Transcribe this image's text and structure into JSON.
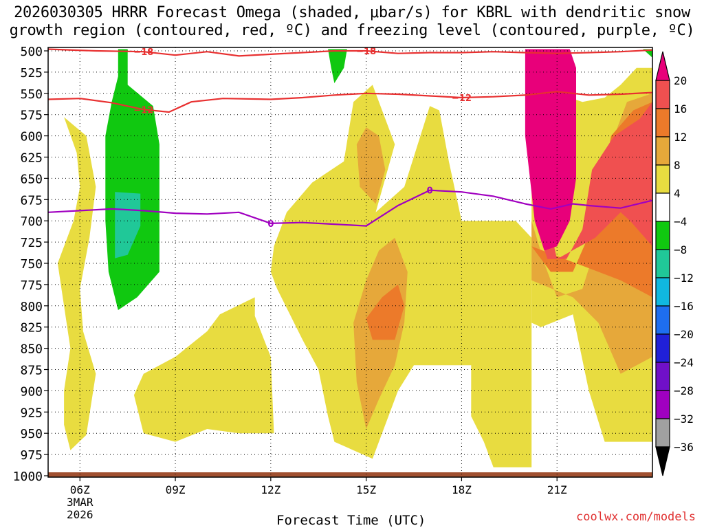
{
  "title": {
    "line1": "2026030305 HRRR Forecast Omega (shaded, μbar/s) for KBRL with dendritic snow",
    "line2": "growth region (contoured, red, ºC) and freezing level (contoured, purple, ºC)"
  },
  "watermark": "coolwx.com/models",
  "chart_data": {
    "type": "contour",
    "title": "2026030305 HRRR Forecast Omega (shaded, μbar/s) for KBRL with dendritic snow growth region (contoured, red, ºC) and freezing level (contoured, purple, ºC)",
    "xlabel": "Forecast Time (UTC)",
    "ylabel": "",
    "x_hours_range": [
      5.0,
      24.0
    ],
    "x_ticks": [
      {
        "hour": 6,
        "label": "06Z",
        "sublabel": "3MAR",
        "sublabel2": "2026"
      },
      {
        "hour": 9,
        "label": "09Z"
      },
      {
        "hour": 12,
        "label": "12Z"
      },
      {
        "hour": 15,
        "label": "15Z"
      },
      {
        "hour": 18,
        "label": "18Z"
      },
      {
        "hour": 21,
        "label": "21Z"
      }
    ],
    "y_levels": [
      500,
      525,
      550,
      575,
      600,
      625,
      650,
      675,
      700,
      725,
      750,
      775,
      800,
      825,
      850,
      875,
      900,
      925,
      950,
      975,
      1000
    ],
    "y_range": [
      500,
      1000
    ],
    "colorbar": {
      "ticks": [
        "20",
        "16",
        "12",
        "8",
        "4",
        "−4",
        "−8",
        "−12",
        "−16",
        "−20",
        "−24",
        "−28",
        "−32",
        "−36"
      ],
      "bins": [
        {
          "color": "#e8007a"
        },
        {
          "color": "#f05050"
        },
        {
          "color": "#ec7a2a"
        },
        {
          "color": "#e6a83a"
        },
        {
          "color": "#e8dc40"
        },
        {
          "color": "#ffffff"
        },
        {
          "color": "#10c810"
        },
        {
          "color": "#20c898"
        },
        {
          "color": "#10b8e0"
        },
        {
          "color": "#1e6ef0"
        },
        {
          "color": "#2020d8"
        },
        {
          "color": "#7010c8"
        },
        {
          "color": "#a000c0"
        },
        {
          "color": "#a0a0a0"
        },
        {
          "color": "#000000"
        }
      ]
    },
    "contours": [
      {
        "name": "-18",
        "label": "−18",
        "color": "#e83030",
        "points": [
          [
            5.0,
            498
          ],
          [
            6.5,
            500
          ],
          [
            8,
            501
          ],
          [
            9,
            505
          ],
          [
            10,
            501
          ],
          [
            11,
            506
          ],
          [
            12,
            504
          ],
          [
            13,
            502
          ],
          [
            14,
            500
          ],
          [
            15,
            500
          ],
          [
            16,
            503
          ],
          [
            17,
            502
          ],
          [
            18,
            502
          ],
          [
            19,
            501
          ],
          [
            20,
            502
          ],
          [
            21,
            503
          ],
          [
            22,
            502
          ],
          [
            23,
            501
          ],
          [
            24,
            499
          ]
        ]
      },
      {
        "name": "-12",
        "label": "−12",
        "color": "#e83030",
        "points": [
          [
            5.0,
            557
          ],
          [
            6,
            556
          ],
          [
            7,
            561
          ],
          [
            8,
            569
          ],
          [
            8.8,
            572
          ],
          [
            9.5,
            560
          ],
          [
            10.5,
            556
          ],
          [
            12,
            557
          ],
          [
            13,
            555
          ],
          [
            14,
            552
          ],
          [
            15,
            550
          ],
          [
            16,
            551
          ],
          [
            17,
            553
          ],
          [
            18,
            555
          ],
          [
            19,
            554
          ],
          [
            20,
            552
          ],
          [
            21,
            548
          ],
          [
            22,
            552
          ],
          [
            23,
            551
          ],
          [
            24,
            549
          ]
        ]
      },
      {
        "name": "0",
        "label": "0",
        "color": "#a000c0",
        "points": [
          [
            5.0,
            690
          ],
          [
            6,
            688
          ],
          [
            7,
            686
          ],
          [
            8,
            688
          ],
          [
            9,
            691
          ],
          [
            10,
            692
          ],
          [
            11,
            690
          ],
          [
            12,
            703
          ],
          [
            13,
            702
          ],
          [
            14,
            704
          ],
          [
            15,
            706
          ],
          [
            16,
            682
          ],
          [
            17,
            664
          ],
          [
            18,
            666
          ],
          [
            19,
            671
          ],
          [
            20,
            680
          ],
          [
            20.8,
            686
          ],
          [
            21.5,
            680
          ],
          [
            22,
            682
          ],
          [
            23,
            685
          ],
          [
            24,
            676
          ]
        ]
      }
    ],
    "contour_label_positions": [
      {
        "name": "-18",
        "hour": 8.0
      },
      {
        "name": "-18",
        "hour": 15.0
      },
      {
        "name": "-12",
        "hour": 8.0
      },
      {
        "name": "-12",
        "hour": 18.0
      },
      {
        "name": "0",
        "hour": 12.0
      },
      {
        "name": "0",
        "hour": 17.0
      }
    ],
    "shaded_regions": [
      {
        "bin": "4 to 8",
        "color": "#e8dc40",
        "polygon": [
          [
            5.5,
            578
          ],
          [
            5.9,
            620
          ],
          [
            6.0,
            660
          ],
          [
            5.8,
            700
          ],
          [
            5.3,
            750
          ],
          [
            5.5,
            800
          ],
          [
            5.7,
            850
          ],
          [
            5.5,
            900
          ],
          [
            5.5,
            940
          ],
          [
            5.7,
            970
          ],
          [
            6.2,
            952
          ],
          [
            6.5,
            880
          ],
          [
            6.1,
            830
          ],
          [
            6.0,
            780
          ],
          [
            6.3,
            720
          ],
          [
            6.5,
            660
          ],
          [
            6.2,
            600
          ]
        ]
      },
      {
        "bin": "4 to 8",
        "color": "#e8dc40",
        "polygon": [
          [
            7.7,
            905
          ],
          [
            8.0,
            880
          ],
          [
            9.0,
            860
          ],
          [
            10.0,
            830
          ],
          [
            10.4,
            810
          ],
          [
            11.5,
            790
          ],
          [
            11.5,
            812
          ],
          [
            12.0,
            860
          ],
          [
            12.1,
            950
          ],
          [
            11.0,
            950
          ],
          [
            10.0,
            945
          ],
          [
            9.0,
            960
          ],
          [
            8.0,
            950
          ]
        ]
      },
      {
        "bin": "4 to 8",
        "color": "#e8dc40",
        "polygon": [
          [
            12.1,
            730
          ],
          [
            12.5,
            690
          ],
          [
            13.3,
            655
          ],
          [
            14.3,
            630
          ],
          [
            14.6,
            560
          ],
          [
            15.2,
            540
          ],
          [
            15.9,
            610
          ],
          [
            15.3,
            690
          ],
          [
            16.2,
            660
          ],
          [
            17.0,
            565
          ],
          [
            17.3,
            570
          ],
          [
            17.6,
            630
          ],
          [
            18.0,
            700
          ],
          [
            19.7,
            700
          ],
          [
            20.2,
            720
          ],
          [
            20.2,
            990
          ],
          [
            19.0,
            990
          ],
          [
            18.7,
            960
          ],
          [
            18.3,
            930
          ],
          [
            18.3,
            870
          ],
          [
            16.5,
            870
          ],
          [
            16.0,
            900
          ],
          [
            15.2,
            980
          ],
          [
            14.0,
            960
          ],
          [
            13.8,
            930
          ],
          [
            13.5,
            875
          ],
          [
            13.0,
            840
          ],
          [
            12.2,
            780
          ],
          [
            12.0,
            760
          ]
        ]
      },
      {
        "bin": "4 to 8",
        "color": "#e8dc40",
        "polygon": [
          [
            20.2,
            565
          ],
          [
            21.0,
            550
          ],
          [
            21.8,
            560
          ],
          [
            22.5,
            555
          ],
          [
            23.0,
            540
          ],
          [
            23.5,
            520
          ],
          [
            24.0,
            520
          ],
          [
            24.0,
            960
          ],
          [
            22.5,
            960
          ],
          [
            22.0,
            900
          ],
          [
            21.5,
            810
          ],
          [
            20.5,
            825
          ],
          [
            20.2,
            820
          ]
        ]
      },
      {
        "bin": "8 to 12",
        "color": "#e6a83a",
        "polygon": [
          [
            14.7,
            610
          ],
          [
            15.0,
            590
          ],
          [
            15.4,
            600
          ],
          [
            15.6,
            640
          ],
          [
            15.3,
            680
          ],
          [
            14.8,
            660
          ]
        ]
      },
      {
        "bin": "8 to 12",
        "color": "#e6a83a",
        "polygon": [
          [
            14.6,
            820
          ],
          [
            15.0,
            770
          ],
          [
            15.4,
            735
          ],
          [
            15.9,
            720
          ],
          [
            16.3,
            760
          ],
          [
            16.2,
            820
          ],
          [
            15.9,
            870
          ],
          [
            15.4,
            910
          ],
          [
            15.0,
            945
          ],
          [
            14.7,
            890
          ]
        ]
      },
      {
        "bin": "8 to 12",
        "color": "#e6a83a",
        "polygon": [
          [
            20.2,
            700
          ],
          [
            20.6,
            750
          ],
          [
            21.0,
            790
          ],
          [
            21.8,
            780
          ],
          [
            22.3,
            720
          ],
          [
            22.6,
            620
          ],
          [
            23.2,
            560
          ],
          [
            24.0,
            550
          ],
          [
            24.0,
            860
          ],
          [
            23.0,
            880
          ],
          [
            22.3,
            820
          ],
          [
            21.5,
            790
          ],
          [
            20.2,
            770
          ]
        ]
      },
      {
        "bin": "12 to 16",
        "color": "#ec7a2a",
        "polygon": [
          [
            15.0,
            815
          ],
          [
            15.5,
            790
          ],
          [
            16.0,
            775
          ],
          [
            16.2,
            800
          ],
          [
            15.9,
            840
          ],
          [
            15.2,
            840
          ]
        ]
      },
      {
        "bin": "12 to 16",
        "color": "#ec7a2a",
        "polygon": [
          [
            20.2,
            730
          ],
          [
            20.8,
            760
          ],
          [
            21.5,
            760
          ],
          [
            22.2,
            700
          ],
          [
            22.7,
            600
          ],
          [
            23.4,
            570
          ],
          [
            24.0,
            560
          ],
          [
            24.0,
            790
          ],
          [
            23.0,
            770
          ],
          [
            22.3,
            760
          ]
        ]
      },
      {
        "bin": "16 to 20",
        "color": "#f05050",
        "polygon": [
          [
            20.1,
            600
          ],
          [
            20.3,
            700
          ],
          [
            20.7,
            745
          ],
          [
            21.3,
            745
          ],
          [
            21.8,
            710
          ],
          [
            22.1,
            640
          ],
          [
            22.8,
            600
          ],
          [
            23.6,
            580
          ],
          [
            24.0,
            560
          ],
          [
            24.0,
            730
          ],
          [
            23.3,
            700
          ],
          [
            23.0,
            690
          ],
          [
            22.2,
            720
          ],
          [
            21.0,
            745
          ]
        ]
      },
      {
        "bin": "above 20",
        "color": "#e8007a",
        "polygon": [
          [
            20.0,
            498
          ],
          [
            21.4,
            498
          ],
          [
            21.6,
            520
          ],
          [
            21.6,
            650
          ],
          [
            21.4,
            700
          ],
          [
            21.0,
            730
          ],
          [
            20.6,
            735
          ],
          [
            20.3,
            700
          ],
          [
            20.0,
            600
          ]
        ]
      },
      {
        "bin": "-8 to -4",
        "color": "#10c810",
        "polygon": [
          [
            7.2,
            498
          ],
          [
            7.5,
            498
          ],
          [
            7.5,
            540
          ],
          [
            8.3,
            565
          ],
          [
            8.5,
            610
          ],
          [
            8.5,
            650
          ],
          [
            8.5,
            760
          ],
          [
            7.8,
            790
          ],
          [
            7.2,
            805
          ],
          [
            6.9,
            760
          ],
          [
            6.8,
            700
          ],
          [
            6.8,
            600
          ],
          [
            7.0,
            560
          ],
          [
            7.2,
            530
          ]
        ]
      },
      {
        "bin": "-8 to -4",
        "color": "#10c810",
        "polygon": [
          [
            13.8,
            498
          ],
          [
            14.4,
            498
          ],
          [
            14.3,
            520
          ],
          [
            14.0,
            538
          ],
          [
            13.9,
            520
          ]
        ]
      },
      {
        "bin": "-8 to -4",
        "color": "#10c810",
        "polygon": [
          [
            23.7,
            498
          ],
          [
            24.0,
            498
          ],
          [
            24.0,
            508
          ]
        ]
      },
      {
        "bin": "-12 to -8",
        "color": "#20c898",
        "polygon": [
          [
            7.1,
            666
          ],
          [
            7.9,
            668
          ],
          [
            7.9,
            706
          ],
          [
            7.5,
            740
          ],
          [
            7.1,
            744
          ]
        ]
      }
    ],
    "ground_color": "#a05030"
  }
}
